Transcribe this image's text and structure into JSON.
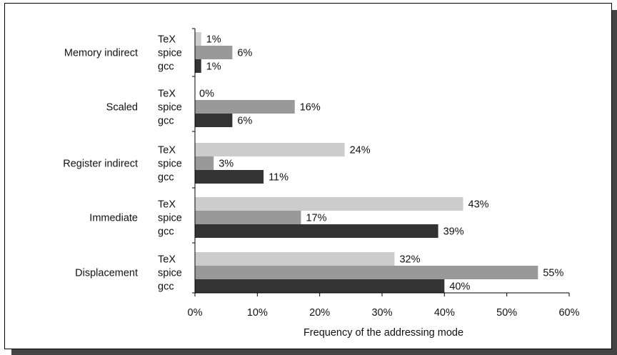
{
  "chart_data": {
    "type": "bar",
    "orientation": "horizontal",
    "categories": [
      "Memory indirect",
      "Scaled",
      "Register indirect",
      "Immediate",
      "Displacement"
    ],
    "series": [
      {
        "name": "TeX",
        "values": [
          1,
          0,
          24,
          43,
          32
        ],
        "color": "#cccccc"
      },
      {
        "name": "spice",
        "values": [
          6,
          16,
          3,
          17,
          55
        ],
        "color": "#999999"
      },
      {
        "name": "gcc",
        "values": [
          1,
          6,
          11,
          39,
          40
        ],
        "color": "#333333"
      }
    ],
    "value_labels": {
      "TeX": [
        "1%",
        "0%",
        "24%",
        "43%",
        "32%"
      ],
      "spice": [
        "6%",
        "16%",
        "3%",
        "17%",
        "55%"
      ],
      "gcc": [
        "1%",
        "6%",
        "11%",
        "39%",
        "40%"
      ]
    },
    "xlabel": "Frequency of the addressing mode",
    "ylabel": "",
    "xlim": [
      0,
      60
    ],
    "xticks": [
      0,
      10,
      20,
      30,
      40,
      50,
      60
    ],
    "xtick_labels": [
      "0%",
      "10%",
      "20%",
      "30%",
      "40%",
      "50%",
      "60%"
    ],
    "grid": false,
    "legend": "none"
  }
}
